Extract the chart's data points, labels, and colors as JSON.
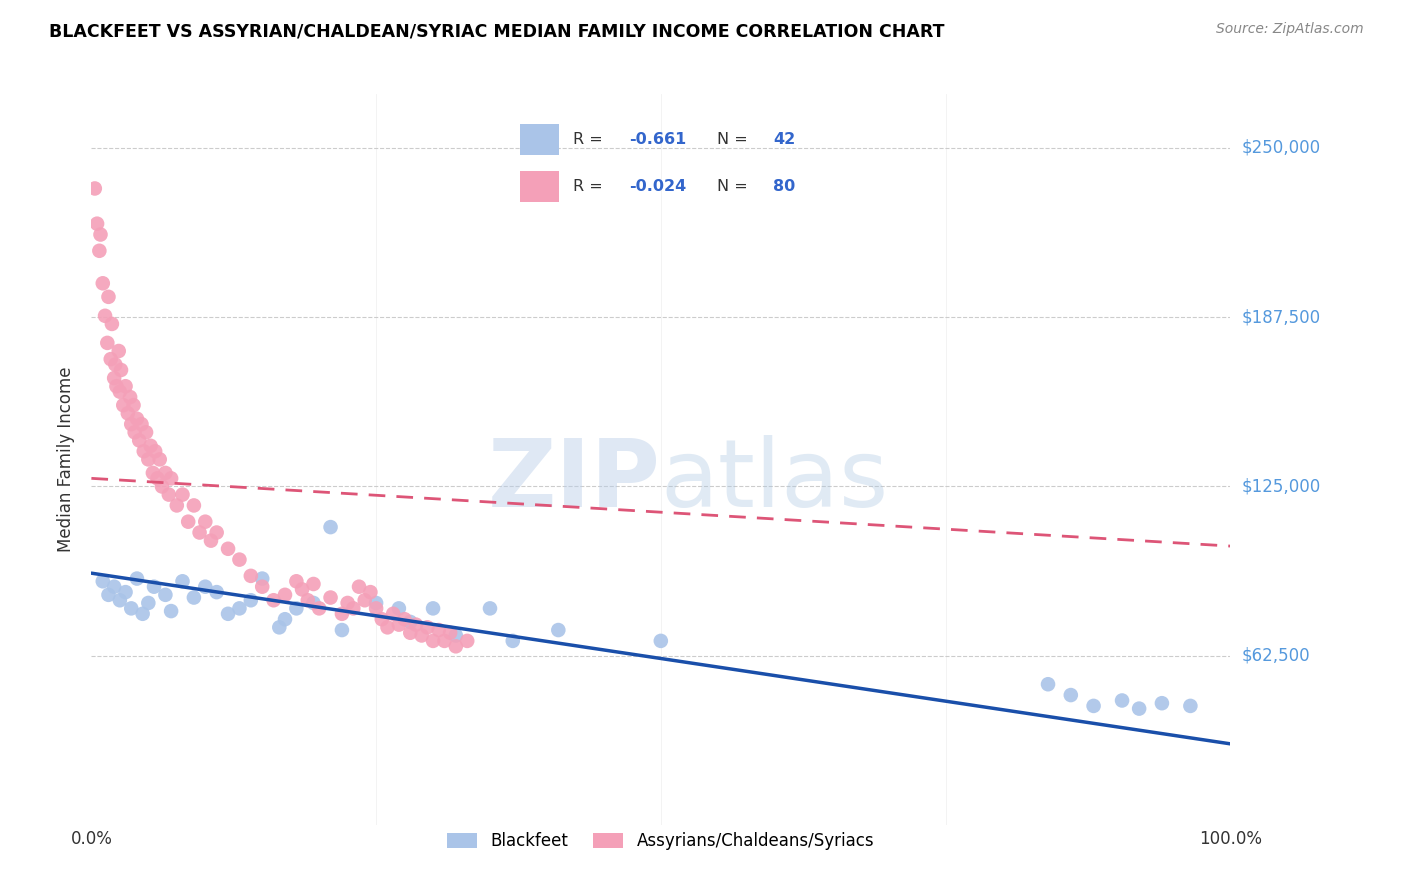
{
  "title": "BLACKFEET VS ASSYRIAN/CHALDEAN/SYRIAC MEDIAN FAMILY INCOME CORRELATION CHART",
  "source": "Source: ZipAtlas.com",
  "ylabel": "Median Family Income",
  "ytick_labels": [
    "$62,500",
    "$125,000",
    "$187,500",
    "$250,000"
  ],
  "ytick_values": [
    62500,
    125000,
    187500,
    250000
  ],
  "ylim": [
    0,
    270000
  ],
  "xlim": [
    0,
    100
  ],
  "blue_R": "-0.661",
  "blue_N": "42",
  "pink_R": "-0.024",
  "pink_N": "80",
  "legend_label_blue": "Blackfeet",
  "legend_label_pink": "Assyrians/Chaldeans/Syriacs",
  "blue_color": "#aac4e8",
  "pink_color": "#f4a0b8",
  "blue_line_color": "#1a4faa",
  "pink_line_color": "#dd5577",
  "watermark_zip": "ZIP",
  "watermark_atlas": "atlas",
  "blue_line_x0": 0,
  "blue_line_y0": 93000,
  "blue_line_x1": 100,
  "blue_line_y1": 30000,
  "pink_line_x0": 0,
  "pink_line_y0": 128000,
  "pink_line_x1": 100,
  "pink_line_y1": 103000,
  "blue_scatter_x": [
    1.0,
    1.5,
    2.0,
    2.5,
    3.0,
    3.5,
    4.0,
    4.5,
    5.0,
    5.5,
    6.5,
    7.0,
    8.0,
    9.0,
    10.0,
    11.0,
    12.0,
    13.0,
    14.0,
    15.0,
    16.5,
    17.0,
    18.0,
    19.5,
    21.0,
    22.0,
    25.0,
    27.0,
    28.0,
    30.0,
    32.0,
    35.0,
    37.0,
    41.0,
    50.0,
    84.0,
    86.0,
    88.0,
    90.5,
    92.0,
    94.0,
    96.5
  ],
  "blue_scatter_y": [
    90000,
    85000,
    88000,
    83000,
    86000,
    80000,
    91000,
    78000,
    82000,
    88000,
    85000,
    79000,
    90000,
    84000,
    88000,
    86000,
    78000,
    80000,
    83000,
    91000,
    73000,
    76000,
    80000,
    82000,
    110000,
    72000,
    82000,
    80000,
    75000,
    80000,
    70000,
    80000,
    68000,
    72000,
    68000,
    52000,
    48000,
    44000,
    46000,
    43000,
    45000,
    44000
  ],
  "pink_scatter_x": [
    0.3,
    0.5,
    0.7,
    0.8,
    1.0,
    1.2,
    1.4,
    1.5,
    1.7,
    1.8,
    2.0,
    2.1,
    2.2,
    2.4,
    2.5,
    2.6,
    2.8,
    3.0,
    3.2,
    3.4,
    3.5,
    3.7,
    3.8,
    4.0,
    4.2,
    4.4,
    4.6,
    4.8,
    5.0,
    5.2,
    5.4,
    5.6,
    5.8,
    6.0,
    6.2,
    6.5,
    6.8,
    7.0,
    7.5,
    8.0,
    8.5,
    9.0,
    9.5,
    10.0,
    10.5,
    11.0,
    12.0,
    13.0,
    14.0,
    15.0,
    16.0,
    17.0,
    18.0,
    18.5,
    19.0,
    19.5,
    20.0,
    21.0,
    22.0,
    22.5,
    23.0,
    23.5,
    24.0,
    24.5,
    25.0,
    25.5,
    26.0,
    26.5,
    27.0,
    27.5,
    28.0,
    28.5,
    29.0,
    29.5,
    30.0,
    30.5,
    31.0,
    31.5,
    32.0,
    33.0
  ],
  "pink_scatter_y": [
    235000,
    222000,
    212000,
    218000,
    200000,
    188000,
    178000,
    195000,
    172000,
    185000,
    165000,
    170000,
    162000,
    175000,
    160000,
    168000,
    155000,
    162000,
    152000,
    158000,
    148000,
    155000,
    145000,
    150000,
    142000,
    148000,
    138000,
    145000,
    135000,
    140000,
    130000,
    138000,
    128000,
    135000,
    125000,
    130000,
    122000,
    128000,
    118000,
    122000,
    112000,
    118000,
    108000,
    112000,
    105000,
    108000,
    102000,
    98000,
    92000,
    88000,
    83000,
    85000,
    90000,
    87000,
    83000,
    89000,
    80000,
    84000,
    78000,
    82000,
    80000,
    88000,
    83000,
    86000,
    80000,
    76000,
    73000,
    78000,
    74000,
    76000,
    71000,
    74000,
    70000,
    73000,
    68000,
    72000,
    68000,
    71000,
    66000,
    68000
  ]
}
